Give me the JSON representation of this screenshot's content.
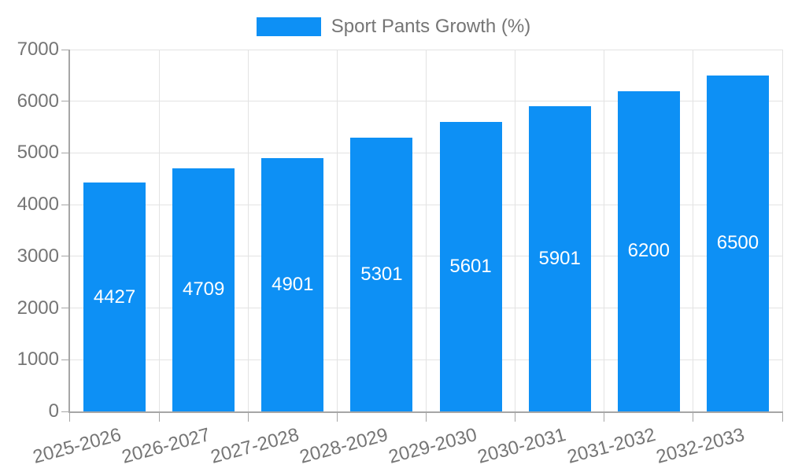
{
  "chart_data": {
    "type": "bar",
    "title": "Sport Pants Growth (%)",
    "legend_position": "top",
    "categories": [
      "2025-2026",
      "2026-2027",
      "2027-2028",
      "2028-2029",
      "2029-2030",
      "2030-2031",
      "2031-2032",
      "2032-2033"
    ],
    "series": [
      {
        "name": "Sport Pants Growth (%)",
        "values": [
          4427,
          4709,
          4901,
          5301,
          5601,
          5901,
          6200,
          6500
        ]
      }
    ],
    "value_labels_shown": true,
    "xlabel": "",
    "ylabel": "",
    "ylim": [
      0,
      7000
    ],
    "y_ticks": [
      0,
      1000,
      2000,
      3000,
      4000,
      5000,
      6000,
      7000
    ],
    "grid": true,
    "colors": {
      "bar": "#0d90f5",
      "value_label": "#ffffff",
      "axis_text": "#757575",
      "gridline": "#e3e3e3",
      "axis_line": "#a6a6a6",
      "background": "#ffffff"
    }
  }
}
